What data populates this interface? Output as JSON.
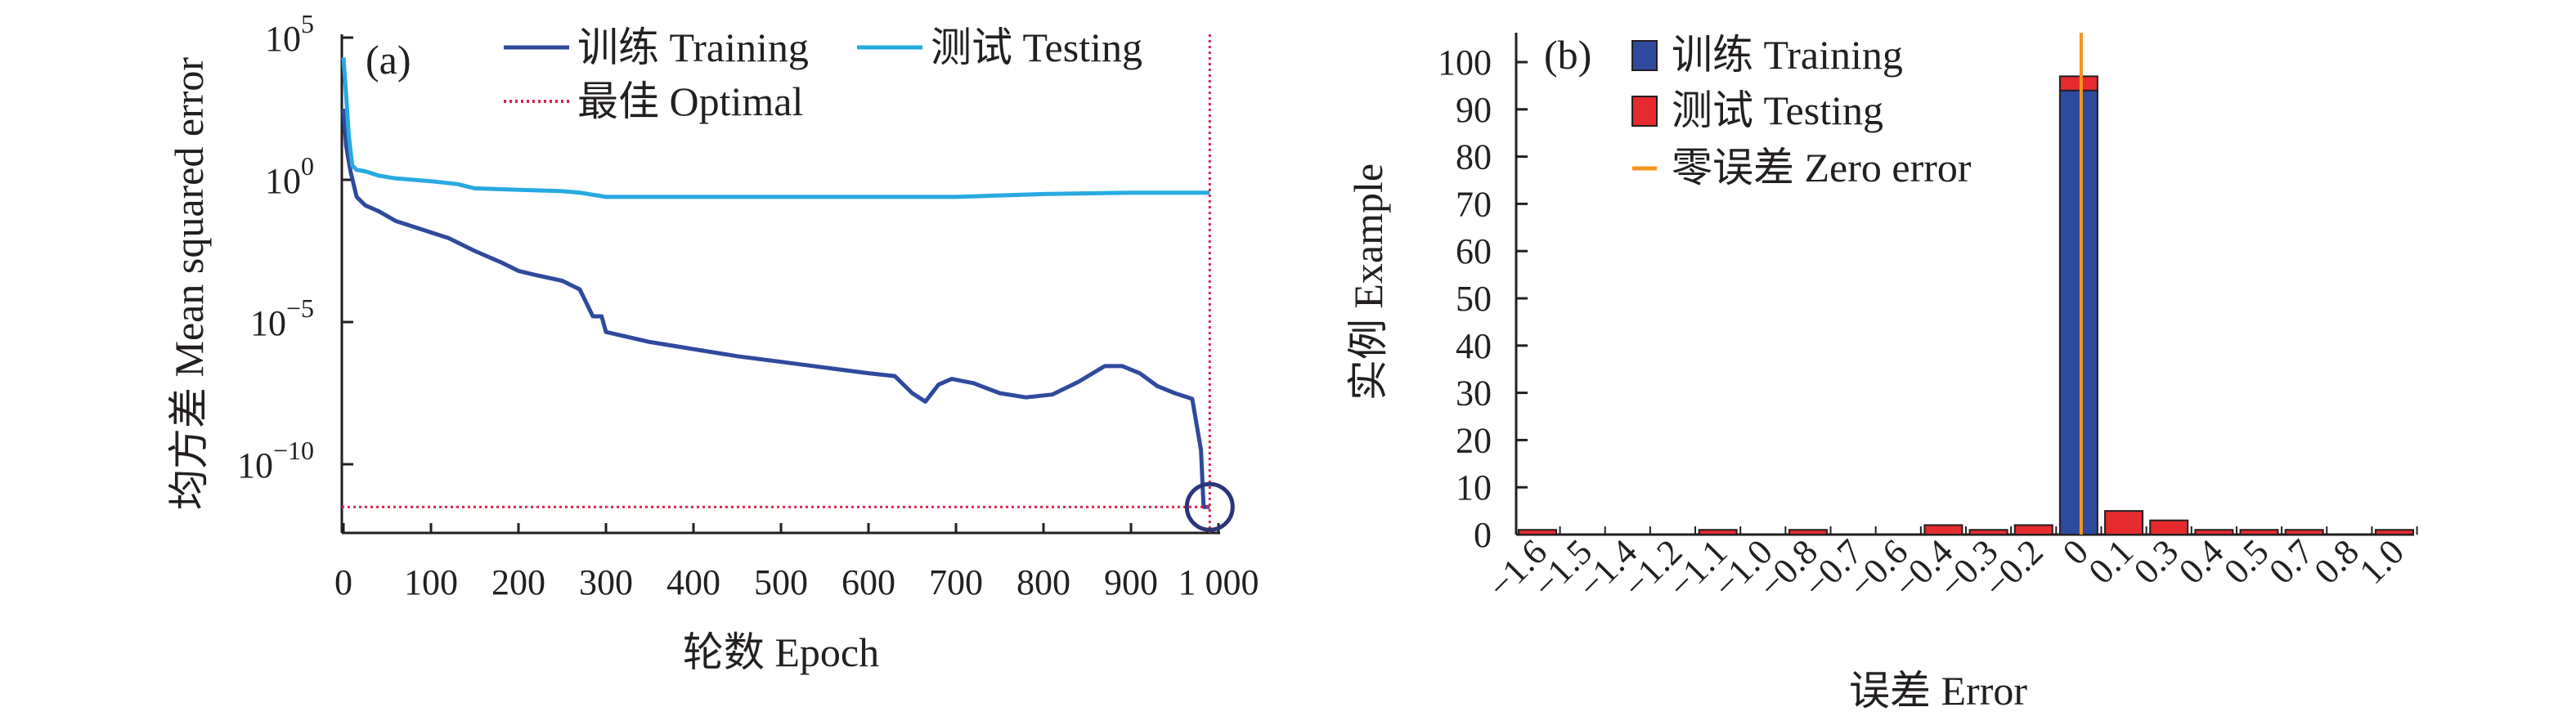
{
  "chart_data": [
    {
      "type": "line",
      "panel_label": "(a)",
      "xlabel": "轮数 Epoch",
      "ylabel": "均方差 Mean squared error",
      "xlim": [
        0,
        1000
      ],
      "yscale": "log",
      "ylim_exponent": [
        -12,
        5
      ],
      "x_ticks": [
        0,
        100,
        200,
        300,
        400,
        500,
        600,
        700,
        800,
        900,
        1000
      ],
      "x_tick_labels": [
        "0",
        "100",
        "200",
        "300",
        "400",
        "500",
        "600",
        "700",
        "800",
        "900",
        "1 000"
      ],
      "y_ticks": [
        {
          "base": "10",
          "exp": "5",
          "value": 100000
        },
        {
          "base": "10",
          "exp": "0",
          "value": 1
        },
        {
          "base": "10",
          "exp": "−5",
          "value": 1e-05
        },
        {
          "base": "10",
          "exp": "−10",
          "value": 1e-10
        }
      ],
      "legend": [
        {
          "label": "训练 Training",
          "color": "#2e4a9e",
          "style": "solid"
        },
        {
          "label": "测试 Testing",
          "color": "#27a9e1",
          "style": "solid"
        },
        {
          "label": "最佳 Optimal",
          "color": "#d6254d",
          "style": "dotted"
        }
      ],
      "series": [
        {
          "name": "训练 Training",
          "color": "#2e4a9e",
          "x": [
            0,
            3,
            8,
            15,
            25,
            40,
            60,
            90,
            120,
            150,
            180,
            200,
            220,
            250,
            270,
            285,
            295,
            300,
            350,
            400,
            450,
            500,
            550,
            600,
            630,
            650,
            665,
            680,
            695,
            720,
            750,
            780,
            810,
            840,
            870,
            890,
            910,
            930,
            950,
            970,
            980,
            983,
            990
          ],
          "log10_y": [
            2.5,
            1.2,
            0.3,
            -0.6,
            -0.9,
            -1.1,
            -1.45,
            -1.75,
            -2.05,
            -2.5,
            -2.9,
            -3.2,
            -3.35,
            -3.55,
            -3.85,
            -4.8,
            -4.8,
            -5.35,
            -5.7,
            -5.95,
            -6.2,
            -6.4,
            -6.6,
            -6.8,
            -6.9,
            -7.5,
            -7.8,
            -7.2,
            -7.0,
            -7.15,
            -7.5,
            -7.65,
            -7.55,
            -7.1,
            -6.55,
            -6.55,
            -6.8,
            -7.25,
            -7.5,
            -7.7,
            -9.5,
            -11.5,
            -11.5
          ]
        },
        {
          "name": "测试 Testing",
          "color": "#27a9e1",
          "x": [
            0,
            3,
            6,
            10,
            15,
            25,
            40,
            60,
            100,
            130,
            150,
            200,
            250,
            270,
            290,
            300,
            400,
            500,
            600,
            700,
            800,
            900,
            990
          ],
          "log10_y": [
            4.3,
            3.0,
            1.6,
            0.5,
            0.35,
            0.3,
            0.15,
            0.05,
            -0.05,
            -0.15,
            -0.3,
            -0.35,
            -0.4,
            -0.45,
            -0.55,
            -0.6,
            -0.6,
            -0.6,
            -0.6,
            -0.6,
            -0.5,
            -0.45,
            -0.45
          ]
        }
      ],
      "optimal": {
        "epoch": 990,
        "log10_y": -11.5
      }
    },
    {
      "type": "bar",
      "panel_label": "(b)",
      "xlabel": "误差 Error",
      "ylabel": "实例 Example",
      "ylim": [
        0,
        105
      ],
      "y_ticks": [
        0,
        10,
        20,
        30,
        40,
        50,
        60,
        70,
        80,
        90,
        100
      ],
      "categories": [
        "−1.6",
        "−1.5",
        "−1.4",
        "−1.2",
        "−1.1",
        "−1.0",
        "−0.8",
        "−0.7",
        "−0.6",
        "−0.4",
        "−0.3",
        "−0.2",
        "0",
        "0.1",
        "0.3",
        "0.4",
        "0.5",
        "0.7",
        "0.8",
        "1.0"
      ],
      "zero_error_at": 0,
      "legend": [
        {
          "label": "训练 Training",
          "color": "#2e4a9e",
          "marker": "box"
        },
        {
          "label": "测试 Testing",
          "color": "#e52b2e",
          "marker": "box"
        },
        {
          "label": "零误差 Zero error",
          "color": "#f7941d",
          "marker": "line"
        }
      ],
      "series": [
        {
          "name": "训练 Training",
          "color": "#2e4a9e",
          "values": [
            0,
            0,
            0,
            0,
            0,
            0,
            0,
            0,
            0,
            0,
            0,
            0,
            94,
            0,
            0,
            0,
            0,
            0,
            0,
            0
          ]
        },
        {
          "name": "测试 Testing",
          "color": "#e52b2e",
          "values": [
            1,
            0,
            0,
            0,
            1,
            0,
            1,
            0,
            0,
            2,
            1,
            2,
            3,
            5,
            3,
            1,
            1,
            1,
            0,
            1
          ]
        }
      ]
    }
  ]
}
